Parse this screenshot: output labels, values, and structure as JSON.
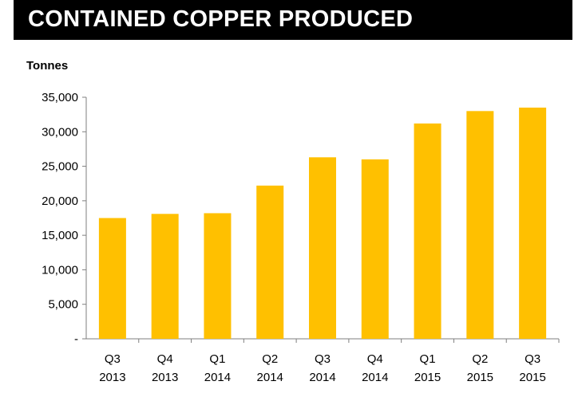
{
  "header": {
    "title": "CONTAINED COPPER PRODUCED"
  },
  "colors": {
    "bar": "#FFC000",
    "title_bg": "#000000",
    "title_text": "#FFFFFF",
    "axis": "#7f7f7f"
  },
  "chart_data": {
    "type": "bar",
    "title": "CONTAINED COPPER PRODUCED",
    "ylabel": "Tonnes",
    "xlabel": "",
    "categories": [
      [
        "Q3",
        "2013"
      ],
      [
        "Q4",
        "2013"
      ],
      [
        "Q1",
        "2014"
      ],
      [
        "Q2",
        "2014"
      ],
      [
        "Q3",
        "2014"
      ],
      [
        "Q4",
        "2014"
      ],
      [
        "Q1",
        "2015"
      ],
      [
        "Q2",
        "2015"
      ],
      [
        "Q3",
        "2015"
      ]
    ],
    "values": [
      17500,
      18100,
      18200,
      22200,
      26300,
      26000,
      31200,
      33000,
      33500
    ],
    "ylim": [
      0,
      35000
    ],
    "yticks": [
      {
        "value": 0,
        "label": "-"
      },
      {
        "value": 5000,
        "label": "5,000"
      },
      {
        "value": 10000,
        "label": "10,000"
      },
      {
        "value": 15000,
        "label": "15,000"
      },
      {
        "value": 20000,
        "label": "20,000"
      },
      {
        "value": 25000,
        "label": "25,000"
      },
      {
        "value": 30000,
        "label": "30,000"
      },
      {
        "value": 35000,
        "label": "35,000"
      }
    ],
    "grid": false,
    "legend": "none"
  }
}
